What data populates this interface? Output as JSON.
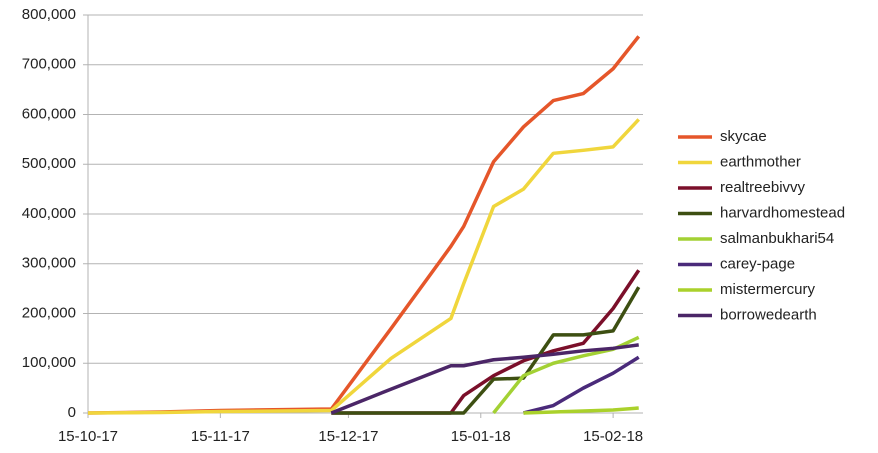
{
  "chart_data": {
    "type": "line",
    "x": [
      "2017-10-15",
      "2017-11-01",
      "2017-11-15",
      "2017-12-11",
      "2017-12-25",
      "2018-01-08",
      "2018-01-11",
      "2018-01-18",
      "2018-01-25",
      "2018-02-01",
      "2018-02-08",
      "2018-02-15",
      "2018-02-21"
    ],
    "xlim": [
      "2017-10-15",
      "2018-02-22"
    ],
    "xticks": [
      {
        "value": "2017-10-15",
        "label": "15-10-17"
      },
      {
        "value": "2017-11-15",
        "label": "15-11-17"
      },
      {
        "value": "2017-12-15",
        "label": "15-12-17"
      },
      {
        "value": "2018-01-15",
        "label": "15-01-18"
      },
      {
        "value": "2018-02-15",
        "label": "15-02-18"
      }
    ],
    "ylim": [
      0,
      800000
    ],
    "yticks": [
      0,
      {
        "value": 100000,
        "label": "100,000"
      },
      {
        "value": 200000,
        "label": "200,000"
      },
      {
        "value": 300000,
        "label": "300,000"
      },
      {
        "value": 400000,
        "label": "400,000"
      },
      {
        "value": 500000,
        "label": "500,000"
      },
      {
        "value": 600000,
        "label": "600,000"
      },
      {
        "value": 700000,
        "label": "700,000"
      },
      {
        "value": 800000,
        "label": "800,000"
      }
    ],
    "grid": true,
    "legend": "right",
    "series": [
      {
        "name": "skycae",
        "color": "#e5562a",
        "values": [
          0,
          2000,
          5000,
          8000,
          170000,
          335000,
          375000,
          505000,
          575000,
          628000,
          642000,
          692000,
          757000
        ]
      },
      {
        "name": "earthmother",
        "color": "#f0d63c",
        "values": [
          0,
          1000,
          3000,
          5000,
          110000,
          190000,
          260000,
          415000,
          450000,
          522000,
          528000,
          535000,
          590000
        ]
      },
      {
        "name": "realtreebivvy",
        "color": "#7b0f2a",
        "values": [
          null,
          null,
          null,
          0,
          0,
          0,
          35000,
          75000,
          105000,
          125000,
          140000,
          210000,
          287000
        ]
      },
      {
        "name": "harvardhomestead",
        "color": "#3d4f12",
        "values": [
          null,
          null,
          null,
          0,
          0,
          0,
          0,
          68000,
          70000,
          157000,
          157000,
          165000,
          253000
        ]
      },
      {
        "name": "salmanbukhari54",
        "color": "#a3d134",
        "values": [
          null,
          null,
          null,
          null,
          null,
          null,
          null,
          0,
          75000,
          100000,
          115000,
          128000,
          152000
        ]
      },
      {
        "name": "carey-page",
        "color": "#4a2a7a",
        "values": [
          null,
          null,
          null,
          null,
          null,
          null,
          null,
          null,
          0,
          15000,
          50000,
          80000,
          112000
        ]
      },
      {
        "name": "mistermercury",
        "color": "#aad12b",
        "values": [
          null,
          null,
          null,
          null,
          null,
          null,
          null,
          null,
          0,
          2000,
          4000,
          6000,
          10000
        ]
      },
      {
        "name": "borrowedearth",
        "color": "#4b2667",
        "values": [
          null,
          null,
          null,
          0,
          48000,
          95000,
          95000,
          107000,
          112000,
          118000,
          125000,
          130000,
          137000
        ]
      }
    ]
  }
}
